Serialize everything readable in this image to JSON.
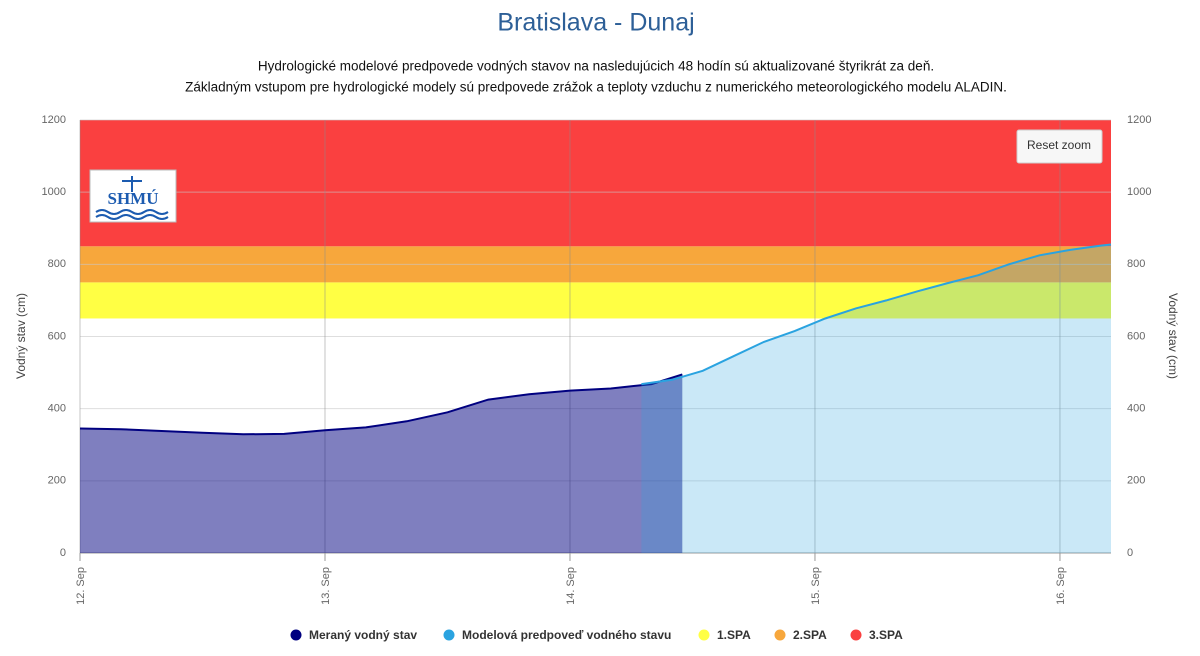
{
  "chart_data": {
    "type": "area",
    "title": "Bratislava - Dunaj",
    "subtitle": [
      "Hydrologické modelové predpovede vodných stavov na nasledujúcich 48 hodín sú aktualizované štyrikrát za deň.",
      "Základným vstupom pre hydrologické modely sú predpovede zrážok a teploty vzduchu z numerického meteorologického modelu ALADIN."
    ],
    "y_label": "Vodný stav (cm)",
    "y2_label": "Vodný stav (cm)",
    "logo": "SHMÚ",
    "reset_zoom": "Reset zoom",
    "xlim": [
      0,
      101
    ],
    "xticks": [
      {
        "value": 0,
        "label": "12. Sep"
      },
      {
        "value": 24,
        "label": "13. Sep"
      },
      {
        "value": 48,
        "label": "14. Sep"
      },
      {
        "value": 72,
        "label": "15. Sep"
      },
      {
        "value": 96,
        "label": "16. Sep"
      }
    ],
    "ylim": [
      0,
      1200
    ],
    "yticks": [
      0,
      200,
      400,
      600,
      800,
      1000,
      1200
    ],
    "y2lim": [
      0,
      1200
    ],
    "y2ticks": [
      0,
      200,
      400,
      600,
      800,
      1000,
      1200
    ],
    "grid": true,
    "series": [
      {
        "name": "Meraný vodný stav",
        "color": "#000080",
        "x": [
          0,
          4,
          8,
          12,
          16,
          20,
          24,
          28,
          32,
          36,
          40,
          44,
          48,
          52,
          56,
          59
        ],
        "values": [
          345,
          343,
          338,
          333,
          329,
          330,
          340,
          348,
          365,
          390,
          425,
          440,
          450,
          456,
          468,
          495
        ]
      },
      {
        "name": "Modelová predpoveď vodného stavu",
        "color": "#2aa3e0",
        "x": [
          55,
          58,
          61,
          64,
          67,
          70,
          73,
          76,
          79,
          82,
          85,
          88,
          91,
          94,
          97,
          100,
          101
        ],
        "values": [
          468,
          480,
          505,
          545,
          585,
          615,
          650,
          678,
          700,
          725,
          748,
          770,
          800,
          825,
          840,
          852,
          855
        ]
      }
    ],
    "bands": [
      {
        "name": "1.SPA",
        "color": "#ffff44",
        "from": 650,
        "to": 750
      },
      {
        "name": "2.SPA",
        "color": "#f7a73c",
        "from": 750,
        "to": 850
      },
      {
        "name": "3.SPA",
        "color": "#fa4040",
        "from": 850,
        "to": 1200
      }
    ]
  }
}
